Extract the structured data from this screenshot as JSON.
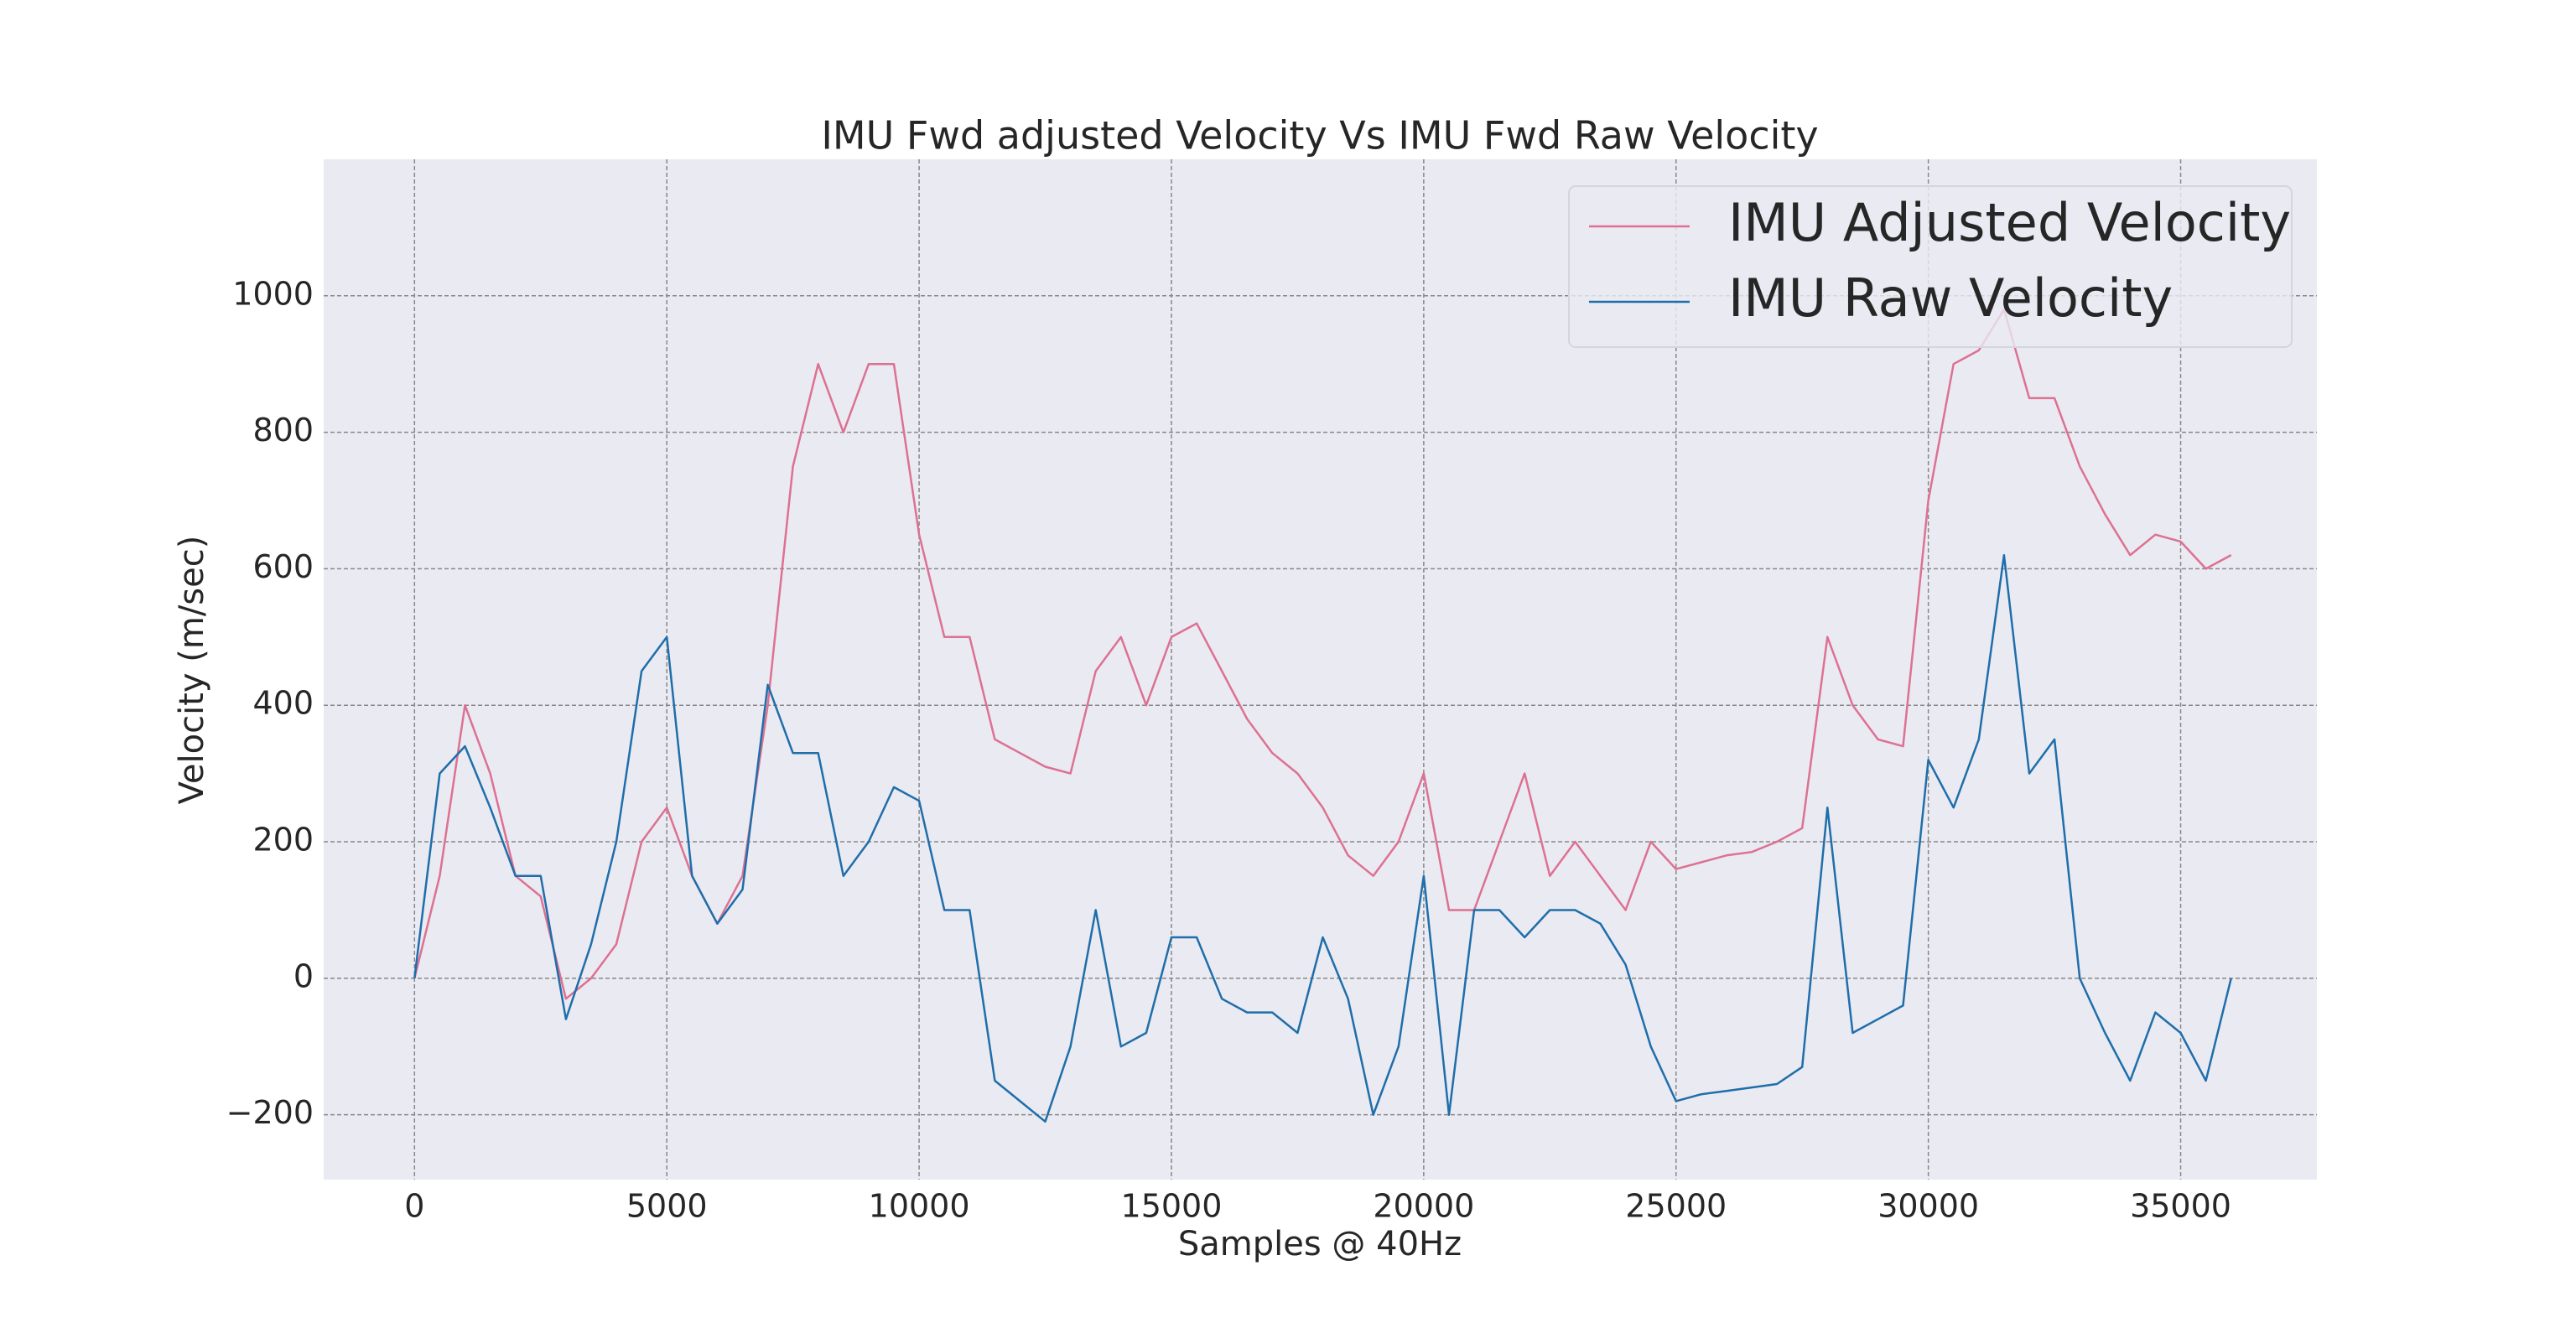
{
  "chart_data": {
    "type": "line",
    "title": "IMU Fwd adjusted Velocity Vs IMU Fwd Raw Velocity",
    "xlabel": "Samples @ 40Hz",
    "ylabel": "Velocity (m/sec)",
    "x": [
      0,
      500,
      1000,
      1500,
      2000,
      2500,
      3000,
      3500,
      4000,
      4500,
      5000,
      5500,
      6000,
      6500,
      7000,
      7500,
      8000,
      8500,
      9000,
      9500,
      10000,
      10500,
      11000,
      11500,
      12000,
      12500,
      13000,
      13500,
      14000,
      14500,
      15000,
      15500,
      16000,
      16500,
      17000,
      17500,
      18000,
      18500,
      19000,
      19500,
      20000,
      20500,
      21000,
      21500,
      22000,
      22500,
      23000,
      23500,
      24000,
      24500,
      25000,
      25500,
      26000,
      26500,
      27000,
      27500,
      28000,
      28500,
      29000,
      29500,
      30000,
      30500,
      31000,
      31500,
      32000,
      32500,
      33000,
      33500,
      34000,
      34500,
      35000,
      35500,
      36000
    ],
    "series": [
      {
        "name": "IMU Adjusted Velocity",
        "color": "#dd7191",
        "values": [
          0,
          150,
          400,
          300,
          150,
          120,
          -30,
          0,
          50,
          200,
          250,
          150,
          80,
          150,
          400,
          750,
          900,
          800,
          900,
          900,
          650,
          500,
          500,
          350,
          330,
          310,
          300,
          450,
          500,
          400,
          500,
          520,
          450,
          380,
          330,
          300,
          250,
          180,
          150,
          200,
          300,
          100,
          100,
          200,
          300,
          150,
          200,
          150,
          100,
          200,
          160,
          170,
          180,
          185,
          200,
          220,
          500,
          400,
          350,
          340,
          700,
          900,
          920,
          980,
          850,
          850,
          750,
          680,
          620,
          650,
          640,
          600,
          620
        ]
      },
      {
        "name": "IMU Raw Velocity",
        "color": "#1f6eaa",
        "values": [
          0,
          300,
          340,
          250,
          150,
          150,
          -60,
          50,
          200,
          450,
          500,
          150,
          80,
          130,
          430,
          330,
          330,
          150,
          200,
          280,
          260,
          100,
          100,
          -150,
          -180,
          -210,
          -100,
          100,
          -100,
          -80,
          60,
          60,
          -30,
          -50,
          -50,
          -80,
          60,
          -30,
          -200,
          -100,
          150,
          -200,
          100,
          100,
          60,
          100,
          100,
          80,
          20,
          -100,
          -180,
          -170,
          -165,
          -160,
          -155,
          -130,
          250,
          -80,
          -60,
          -40,
          320,
          250,
          350,
          620,
          300,
          350,
          0,
          -80,
          -150,
          -50,
          -80,
          -150,
          0
        ]
      }
    ],
    "xlim": [
      -1800,
      37700
    ],
    "ylim": [
      -295,
      1200
    ],
    "xticks": [
      0,
      5000,
      10000,
      15000,
      20000,
      25000,
      30000,
      35000
    ],
    "yticks": [
      {
        "value": -200,
        "label": "−200"
      },
      0,
      200,
      400,
      600,
      800,
      1000
    ],
    "grid": true,
    "legend": "upper right"
  }
}
